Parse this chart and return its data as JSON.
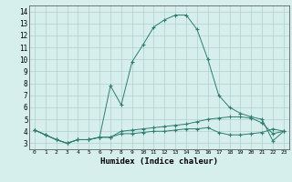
{
  "xlabel": "Humidex (Indice chaleur)",
  "x": [
    0,
    1,
    2,
    3,
    4,
    5,
    6,
    7,
    8,
    9,
    10,
    11,
    12,
    13,
    14,
    15,
    16,
    17,
    18,
    19,
    20,
    21,
    22,
    23
  ],
  "curve_main": [
    4.1,
    3.7,
    3.3,
    3.0,
    3.3,
    3.3,
    3.5,
    7.8,
    6.2,
    9.8,
    11.2,
    12.7,
    13.3,
    13.7,
    13.7,
    12.5,
    10.0,
    7.0,
    6.0,
    5.5,
    5.2,
    5.0,
    3.2,
    4.0
  ],
  "curve_upper": [
    4.1,
    3.7,
    3.3,
    3.0,
    3.3,
    3.3,
    3.5,
    3.5,
    4.0,
    4.1,
    4.2,
    4.3,
    4.4,
    4.5,
    4.6,
    4.8,
    5.0,
    5.1,
    5.2,
    5.2,
    5.1,
    4.7,
    3.8,
    4.0
  ],
  "curve_lower": [
    4.1,
    3.7,
    3.3,
    3.0,
    3.3,
    3.3,
    3.5,
    3.5,
    3.8,
    3.8,
    3.9,
    4.0,
    4.0,
    4.1,
    4.2,
    4.2,
    4.3,
    3.9,
    3.7,
    3.7,
    3.8,
    3.9,
    4.2,
    4.0
  ],
  "line_color": "#2e7d6e",
  "bg_color": "#d6efed",
  "grid_color": "#b0d0cc",
  "ylim": [
    2.5,
    14.5
  ],
  "xlim": [
    -0.5,
    23.5
  ],
  "yticks": [
    3,
    4,
    5,
    6,
    7,
    8,
    9,
    10,
    11,
    12,
    13,
    14
  ],
  "xticks": [
    0,
    1,
    2,
    3,
    4,
    5,
    6,
    7,
    8,
    9,
    10,
    11,
    12,
    13,
    14,
    15,
    16,
    17,
    18,
    19,
    20,
    21,
    22,
    23
  ]
}
